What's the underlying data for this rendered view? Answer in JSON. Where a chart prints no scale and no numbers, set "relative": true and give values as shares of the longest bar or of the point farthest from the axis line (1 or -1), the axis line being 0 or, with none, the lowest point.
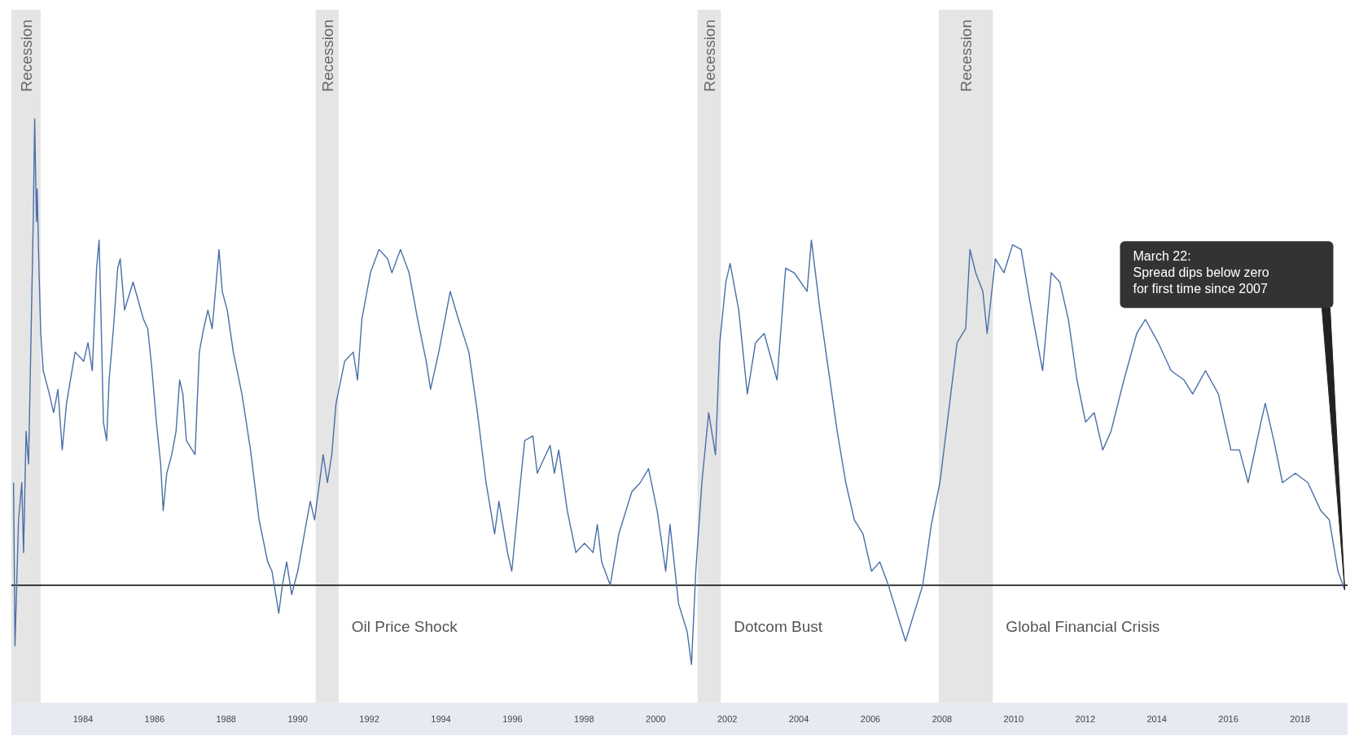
{
  "chart_data": {
    "type": "line",
    "relative": true,
    "xlim": [
      1982.0,
      2019.33
    ],
    "xticks": [
      1984,
      1986,
      1988,
      1990,
      1992,
      1994,
      1996,
      1998,
      2000,
      2002,
      2004,
      2006,
      2008,
      2010,
      2012,
      2014,
      2016,
      2018
    ],
    "tick_labels": "x",
    "x": [
      1982.06,
      1982.1,
      1982.2,
      1982.29,
      1982.34,
      1982.41,
      1982.48,
      1982.53,
      1982.61,
      1982.65,
      1982.7,
      1982.72,
      1982.77,
      1982.82,
      1982.89,
      1983.06,
      1983.18,
      1983.3,
      1983.42,
      1983.54,
      1983.78,
      1984.02,
      1984.14,
      1984.26,
      1984.38,
      1984.45,
      1984.5,
      1984.57,
      1984.66,
      1984.73,
      1984.85,
      1984.97,
      1985.04,
      1985.16,
      1985.4,
      1985.69,
      1985.81,
      1985.93,
      1986.05,
      1986.17,
      1986.24,
      1986.34,
      1986.48,
      1986.6,
      1986.7,
      1986.79,
      1986.89,
      1987.13,
      1987.25,
      1987.37,
      1987.49,
      1987.61,
      1987.8,
      1987.89,
      1988.03,
      1988.2,
      1988.44,
      1988.68,
      1988.92,
      1989.16,
      1989.28,
      1989.47,
      1989.57,
      1989.69,
      1989.83,
      1990.0,
      1990.23,
      1990.35,
      1990.47,
      1990.71,
      1990.83,
      1990.95,
      1991.07,
      1991.31,
      1991.55,
      1991.67,
      1991.79,
      1992.03,
      1992.27,
      1992.51,
      1992.63,
      1992.87,
      1993.11,
      1993.35,
      1993.59,
      1993.71,
      1993.94,
      1994.26,
      1994.49,
      1994.78,
      1995.02,
      1995.26,
      1995.5,
      1995.62,
      1995.86,
      1995.98,
      1996.22,
      1996.34,
      1996.57,
      1996.69,
      1997.05,
      1997.17,
      1997.29,
      1997.53,
      1997.77,
      1998.01,
      1998.25,
      1998.37,
      1998.49,
      1998.73,
      1998.97,
      1999.33,
      1999.57,
      1999.8,
      2000.04,
      2000.28,
      2000.4,
      2000.64,
      2000.88,
      2001.0,
      2001.12,
      2001.29,
      2001.48,
      2001.67,
      2001.79,
      2001.96,
      2002.08,
      2002.32,
      2002.56,
      2002.79,
      2003.03,
      2003.39,
      2003.63,
      2003.87,
      2004.23,
      2004.35,
      2004.59,
      2004.83,
      2005.07,
      2005.31,
      2005.55,
      2005.79,
      2006.03,
      2006.26,
      2006.5,
      2006.74,
      2006.98,
      2007.22,
      2007.46,
      2007.7,
      2007.94,
      2008.18,
      2008.42,
      2008.66,
      2008.78,
      2008.94,
      2009.14,
      2009.26,
      2009.49,
      2009.73,
      2009.97,
      2010.21,
      2010.45,
      2010.81,
      2011.05,
      2011.29,
      2011.53,
      2011.77,
      2012.01,
      2012.25,
      2012.49,
      2012.72,
      2013.08,
      2013.44,
      2013.68,
      2014.04,
      2014.4,
      2014.76,
      2015.0,
      2015.36,
      2015.72,
      2016.07,
      2016.31,
      2016.55,
      2016.91,
      2017.03,
      2017.27,
      2017.51,
      2017.87,
      2018.22,
      2018.58,
      2018.82,
      2019.06,
      2019.25
    ],
    "series": [
      {
        "color": "#4a6fa8",
        "values": [
          0.22,
          -0.13,
          0.14,
          0.22,
          0.07,
          0.33,
          0.26,
          0.46,
          0.78,
          1.0,
          0.78,
          0.85,
          0.68,
          0.54,
          0.46,
          0.41,
          0.37,
          0.42,
          0.29,
          0.39,
          0.5,
          0.48,
          0.52,
          0.46,
          0.68,
          0.74,
          0.59,
          0.35,
          0.31,
          0.44,
          0.55,
          0.68,
          0.7,
          0.59,
          0.65,
          0.57,
          0.55,
          0.46,
          0.35,
          0.26,
          0.16,
          0.24,
          0.28,
          0.33,
          0.44,
          0.41,
          0.31,
          0.28,
          0.5,
          0.55,
          0.59,
          0.55,
          0.72,
          0.63,
          0.59,
          0.5,
          0.41,
          0.29,
          0.14,
          0.05,
          0.03,
          -0.06,
          0.0,
          0.05,
          -0.02,
          0.03,
          0.13,
          0.18,
          0.14,
          0.28,
          0.22,
          0.28,
          0.39,
          0.48,
          0.5,
          0.44,
          0.57,
          0.67,
          0.72,
          0.7,
          0.67,
          0.72,
          0.67,
          0.57,
          0.48,
          0.42,
          0.5,
          0.63,
          0.57,
          0.5,
          0.37,
          0.22,
          0.11,
          0.18,
          0.07,
          0.03,
          0.22,
          0.31,
          0.32,
          0.24,
          0.3,
          0.24,
          0.29,
          0.16,
          0.07,
          0.09,
          0.07,
          0.13,
          0.05,
          0.0,
          0.11,
          0.2,
          0.22,
          0.25,
          0.16,
          0.03,
          0.13,
          -0.04,
          -0.1,
          -0.17,
          0.03,
          0.22,
          0.37,
          0.28,
          0.52,
          0.65,
          0.69,
          0.59,
          0.41,
          0.52,
          0.54,
          0.44,
          0.68,
          0.67,
          0.63,
          0.74,
          0.59,
          0.46,
          0.33,
          0.22,
          0.14,
          0.11,
          0.03,
          0.05,
          0.0,
          -0.06,
          -0.12,
          -0.06,
          0.0,
          0.13,
          0.22,
          0.37,
          0.52,
          0.55,
          0.72,
          0.67,
          0.63,
          0.54,
          0.7,
          0.67,
          0.73,
          0.72,
          0.61,
          0.46,
          0.67,
          0.65,
          0.57,
          0.44,
          0.35,
          0.37,
          0.29,
          0.33,
          0.44,
          0.54,
          0.57,
          0.52,
          0.46,
          0.44,
          0.41,
          0.46,
          0.41,
          0.29,
          0.29,
          0.22,
          0.35,
          0.39,
          0.31,
          0.22,
          0.24,
          0.22,
          0.16,
          0.14,
          0.03,
          -0.01
        ]
      }
    ],
    "ref_lines": [
      {
        "axis": "y",
        "value": 0,
        "color": "#000000"
      }
    ],
    "bands": [
      {
        "axis": "x",
        "from": 1982.0,
        "to": 1982.82,
        "label": "Recession",
        "color": "#e5e5e5"
      },
      {
        "axis": "x",
        "from": 1990.5,
        "to": 1991.14,
        "label": "Recession",
        "color": "#e5e5e5"
      },
      {
        "axis": "x",
        "from": 2001.17,
        "to": 2001.82,
        "label": "Recession",
        "color": "#e5e5e5"
      },
      {
        "axis": "x",
        "from": 2007.91,
        "to": 2009.42,
        "label": "Recession",
        "color": "#e5e5e5"
      }
    ],
    "annotations": [
      "Oil Price Shock",
      "Dotcom Bust",
      "Global Financial Crisis",
      "March 22:\nSpread dips below zero\nfor first time since 2007"
    ]
  }
}
